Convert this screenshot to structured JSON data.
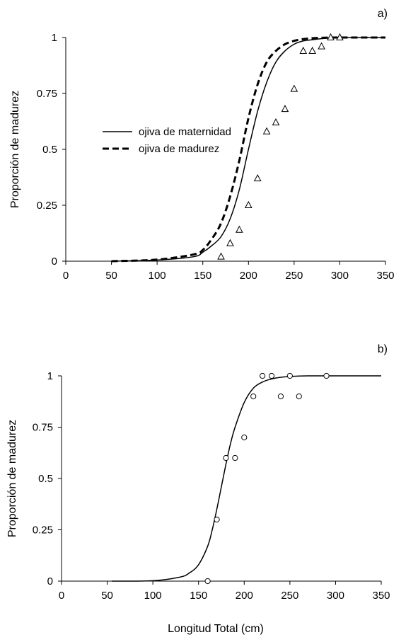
{
  "figure": {
    "xlabel_shared": "Longitud Total (cm)"
  },
  "chart_data": [
    {
      "type": "line",
      "panel_label": "a)",
      "title": "",
      "xlabel": "",
      "ylabel": "Proporción de madurez",
      "xlim": [
        0,
        350
      ],
      "ylim": [
        0,
        1
      ],
      "x_ticks": [
        "0",
        "50",
        "100",
        "150",
        "200",
        "250",
        "300",
        "350"
      ],
      "y_ticks": [
        "0",
        "0.25",
        "0.5",
        "0.75",
        "1"
      ],
      "grid": false,
      "legend_position": "left",
      "series": [
        {
          "name": "ojiva de maternidad",
          "style": "solid",
          "color": "#000000",
          "x": [
            50,
            100,
            140,
            150,
            160,
            170,
            180,
            190,
            200,
            210,
            220,
            230,
            240,
            250,
            260,
            270,
            280,
            290,
            300,
            320,
            350
          ],
          "y": [
            0.0,
            0.005,
            0.02,
            0.04,
            0.07,
            0.11,
            0.19,
            0.32,
            0.5,
            0.67,
            0.8,
            0.89,
            0.94,
            0.97,
            0.985,
            0.99,
            0.995,
            0.998,
            1.0,
            1.0,
            1.0
          ]
        },
        {
          "name": "ojiva de madurez",
          "style": "dashed",
          "color": "#000000",
          "x": [
            50,
            100,
            140,
            150,
            160,
            170,
            180,
            190,
            200,
            210,
            220,
            230,
            240,
            250,
            260,
            270,
            280,
            290,
            300,
            320,
            350
          ],
          "y": [
            0.0,
            0.007,
            0.03,
            0.05,
            0.1,
            0.17,
            0.29,
            0.45,
            0.64,
            0.79,
            0.89,
            0.94,
            0.97,
            0.985,
            0.993,
            0.997,
            0.999,
            1.0,
            1.0,
            1.0,
            1.0
          ]
        },
        {
          "name": "",
          "type": "scatter",
          "marker": "triangle",
          "color": "#000000",
          "x": [
            170,
            180,
            190,
            200,
            210,
            220,
            230,
            240,
            250,
            260,
            270,
            280,
            290,
            300
          ],
          "y": [
            0.02,
            0.08,
            0.14,
            0.25,
            0.37,
            0.58,
            0.62,
            0.68,
            0.77,
            0.94,
            0.94,
            0.96,
            1.0,
            1.0
          ]
        }
      ]
    },
    {
      "type": "line",
      "panel_label": "b)",
      "title": "",
      "xlabel": "Longitud Total (cm)",
      "ylabel": "Proporción de madurez",
      "xlim": [
        0,
        350
      ],
      "ylim": [
        0,
        1
      ],
      "x_ticks": [
        "0",
        "50",
        "100",
        "150",
        "200",
        "250",
        "300",
        "350"
      ],
      "y_ticks": [
        "0",
        "0.25",
        "0.5",
        "0.75",
        "1"
      ],
      "grid": false,
      "series": [
        {
          "name": "",
          "style": "solid",
          "color": "#000000",
          "x": [
            55,
            100,
            130,
            140,
            150,
            160,
            165,
            170,
            175,
            180,
            185,
            190,
            200,
            210,
            220,
            230,
            240,
            250,
            270,
            300,
            350
          ],
          "y": [
            0.0,
            0.002,
            0.02,
            0.04,
            0.08,
            0.17,
            0.25,
            0.35,
            0.46,
            0.57,
            0.67,
            0.75,
            0.87,
            0.94,
            0.97,
            0.985,
            0.993,
            0.997,
            1.0,
            1.0,
            1.0
          ]
        },
        {
          "name": "",
          "type": "scatter",
          "marker": "circle",
          "color": "#000000",
          "x": [
            160,
            170,
            180,
            190,
            200,
            210,
            220,
            230,
            240,
            250,
            260,
            290
          ],
          "y": [
            0.0,
            0.3,
            0.6,
            0.6,
            0.7,
            0.9,
            1.0,
            1.0,
            0.9,
            1.0,
            0.9,
            1.0
          ]
        }
      ]
    }
  ]
}
